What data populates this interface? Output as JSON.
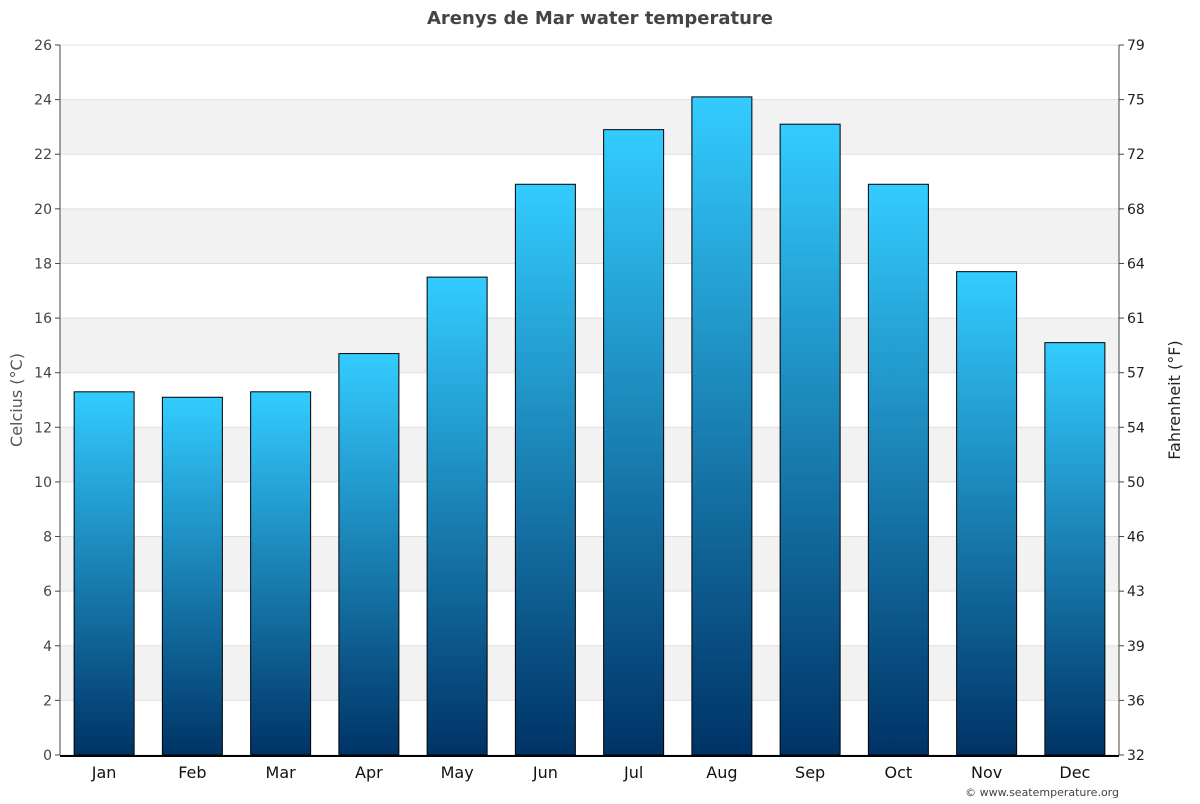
{
  "chart_data": {
    "type": "bar",
    "title": "Arenys de Mar water temperature",
    "ylabel": "Celcius (°C)",
    "y2label": "Fahrenheit (°F)",
    "categories": [
      "Jan",
      "Feb",
      "Mar",
      "Apr",
      "May",
      "Jun",
      "Jul",
      "Aug",
      "Sep",
      "Oct",
      "Nov",
      "Dec"
    ],
    "values": [
      13.3,
      13.1,
      13.3,
      14.7,
      17.5,
      20.9,
      22.9,
      24.1,
      23.1,
      20.9,
      17.7,
      15.1
    ],
    "ylim": [
      0,
      26
    ],
    "yticks": [
      0,
      2,
      4,
      6,
      8,
      10,
      12,
      14,
      16,
      18,
      20,
      22,
      24,
      26
    ],
    "y2ticks": [
      32,
      36,
      39,
      43,
      46,
      50,
      54,
      57,
      61,
      64,
      68,
      72,
      75,
      79
    ],
    "grid": true,
    "bar_gradient": [
      "#33ccff",
      "#003366"
    ],
    "band_color": "#f2f2f2"
  },
  "footer": "© www.seatemperature.org"
}
